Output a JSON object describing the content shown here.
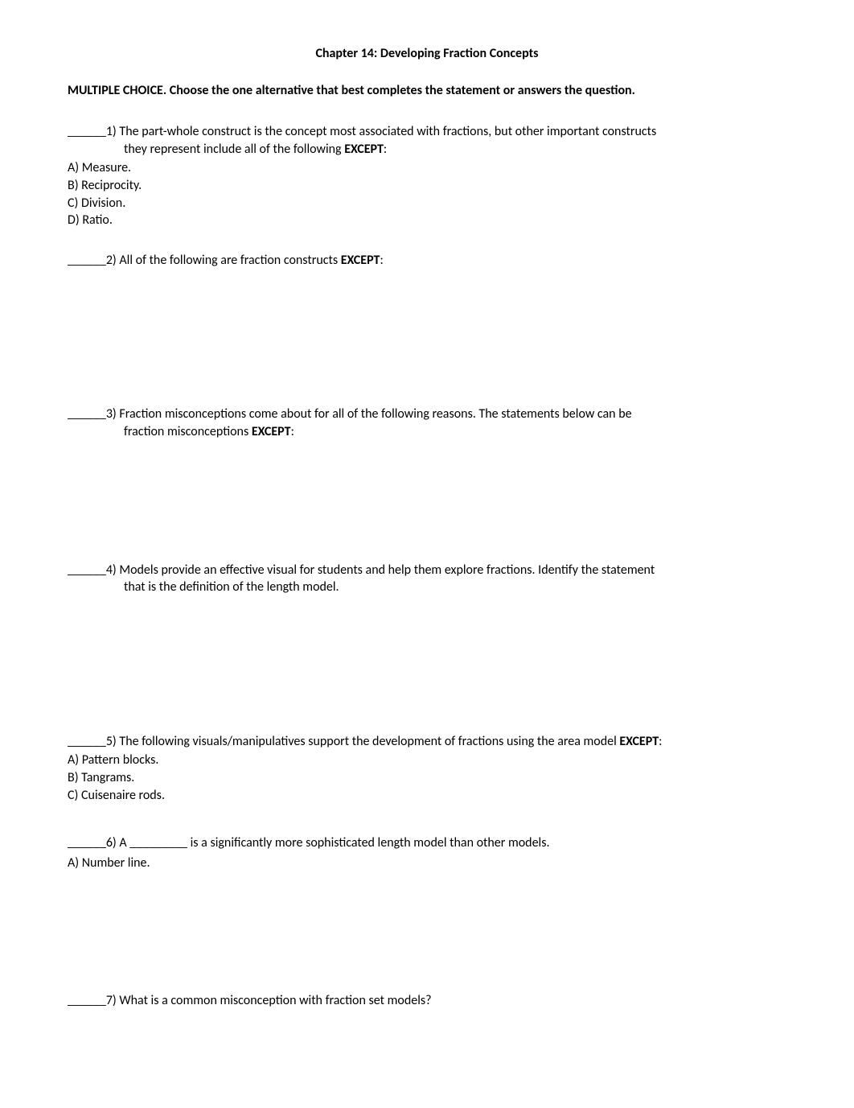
{
  "title": "Chapter 14: Developing Fraction Concepts",
  "instruction": "MULTIPLE CHOICE. Choose the one alternative that best completes the statement or answers the question.",
  "blank": "______",
  "q1": {
    "num": "1)",
    "line1": "The part-whole construct is the concept most associated with fractions, but other important constructs",
    "line2": "they represent include all of the following ",
    "except": "EXCEPT",
    "colon": ":",
    "opts": {
      "a": "A) Measure.",
      "b": "B) Reciprocity.",
      "c": "C) Division.",
      "d": "D) Ratio."
    }
  },
  "q2": {
    "num": "2)",
    "line1": "All of the following are fraction constructs ",
    "except": "EXCEPT",
    "colon": ":"
  },
  "q3": {
    "num": "3)",
    "line1": "Fraction misconceptions come about for all of the following reasons. The statements below can be",
    "line2": "fraction misconceptions ",
    "except": "EXCEPT",
    "colon": ":"
  },
  "q4": {
    "num": "4)",
    "line1": "Models provide an effective visual for students and help them explore fractions. Identify the statement",
    "line2": "that is the definition of the length model."
  },
  "q5": {
    "num": "5)",
    "line1": "The following visuals/manipulatives support the development of fractions using the area model ",
    "except": "EXCEPT",
    "colon": ":",
    "opts": {
      "a": "A) Pattern blocks.",
      "b": "B) Tangrams.",
      "c": "C) Cuisenaire rods."
    }
  },
  "q6": {
    "num": "6)",
    "line1a": "A ",
    "inblank": "_________",
    "line1b": " is a significantly more sophisticated length model than other models.",
    "opts": {
      "a": "A) Number line."
    }
  },
  "q7": {
    "num": "7)",
    "line1": "What is a common misconception with fraction set models?"
  }
}
